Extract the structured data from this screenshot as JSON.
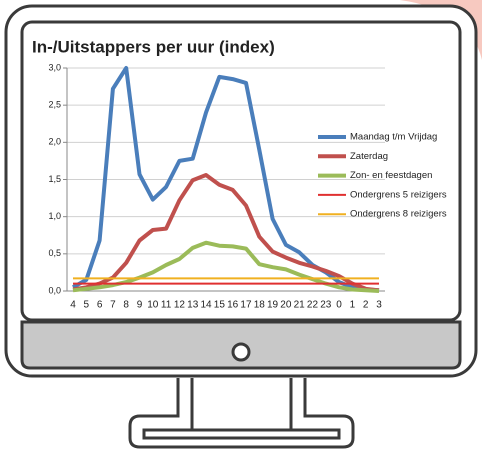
{
  "chart_data": {
    "type": "line",
    "title": "In-/Uitstappers per uur (index)",
    "categories": [
      "4",
      "5",
      "6",
      "7",
      "8",
      "9",
      "10",
      "11",
      "12",
      "13",
      "14",
      "15",
      "16",
      "17",
      "18",
      "19",
      "20",
      "21",
      "22",
      "23",
      "0",
      "1",
      "2",
      "3"
    ],
    "ylim": [
      0,
      3
    ],
    "yticks": [
      {
        "value": 0,
        "label": "0,0"
      },
      {
        "value": 0.5,
        "label": "0,5"
      },
      {
        "value": 1,
        "label": "1,0"
      },
      {
        "value": 1.5,
        "label": "1,5"
      },
      {
        "value": 2,
        "label": "2,0"
      },
      {
        "value": 2.5,
        "label": "2,5"
      },
      {
        "value": 3,
        "label": "3,0"
      }
    ],
    "grid": true,
    "legend": "right",
    "series": [
      {
        "name": "Maandag t/m Vrijdag",
        "color": "#4a7ebb",
        "width": 4,
        "values": [
          0.05,
          0.15,
          0.68,
          2.72,
          3.0,
          1.57,
          1.23,
          1.4,
          1.75,
          1.78,
          2.4,
          2.88,
          2.85,
          2.8,
          1.9,
          0.97,
          0.62,
          0.52,
          0.35,
          0.25,
          0.12,
          0.05,
          0.02,
          0.01
        ]
      },
      {
        "name": "Zaterdag",
        "color": "#c0504d",
        "width": 4,
        "values": [
          0.02,
          0.05,
          0.1,
          0.18,
          0.38,
          0.68,
          0.82,
          0.84,
          1.22,
          1.49,
          1.56,
          1.43,
          1.36,
          1.15,
          0.73,
          0.53,
          0.45,
          0.38,
          0.33,
          0.27,
          0.2,
          0.1,
          0.03,
          0.01
        ]
      },
      {
        "name": "Zon- en feestdagen",
        "color": "#9bbb59",
        "width": 4,
        "values": [
          0.01,
          0.03,
          0.05,
          0.08,
          0.12,
          0.18,
          0.25,
          0.35,
          0.43,
          0.58,
          0.65,
          0.61,
          0.6,
          0.57,
          0.36,
          0.32,
          0.29,
          0.22,
          0.16,
          0.1,
          0.05,
          0.02,
          0.01,
          0
        ]
      },
      {
        "name": "Ondergrens 5 reizigers",
        "color": "#e03030",
        "width": 2,
        "values": [
          0.1,
          0.1,
          0.1,
          0.1,
          0.1,
          0.1,
          0.1,
          0.1,
          0.1,
          0.1,
          0.1,
          0.1,
          0.1,
          0.1,
          0.1,
          0.1,
          0.1,
          0.1,
          0.1,
          0.1,
          0.1,
          0.1,
          0.1,
          0.1
        ]
      },
      {
        "name": "Ondergrens 8 reizigers",
        "color": "#f0b020",
        "width": 2,
        "values": [
          0.17,
          0.17,
          0.17,
          0.17,
          0.17,
          0.17,
          0.17,
          0.17,
          0.17,
          0.17,
          0.17,
          0.17,
          0.17,
          0.17,
          0.17,
          0.17,
          0.17,
          0.17,
          0.17,
          0.17,
          0.17,
          0.17,
          0.17,
          0.17
        ]
      }
    ]
  }
}
